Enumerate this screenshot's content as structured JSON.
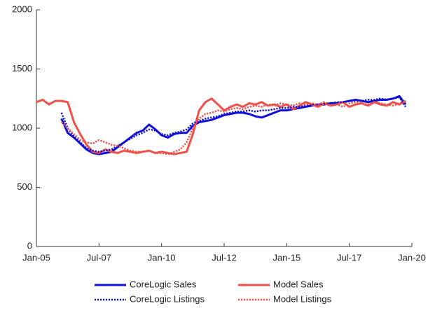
{
  "chart_data": {
    "type": "line",
    "x": [
      "2005-01",
      "2005-04",
      "2005-07",
      "2005-10",
      "2006-01",
      "2006-04",
      "2006-07",
      "2006-10",
      "2007-01",
      "2007-04",
      "2007-07",
      "2007-10",
      "2008-01",
      "2008-04",
      "2008-07",
      "2008-10",
      "2009-01",
      "2009-04",
      "2009-07",
      "2009-10",
      "2010-01",
      "2010-04",
      "2010-07",
      "2010-10",
      "2011-01",
      "2011-04",
      "2011-07",
      "2011-10",
      "2012-01",
      "2012-04",
      "2012-07",
      "2012-10",
      "2013-01",
      "2013-04",
      "2013-07",
      "2013-10",
      "2014-01",
      "2014-04",
      "2014-07",
      "2014-10",
      "2015-01",
      "2015-04",
      "2015-07",
      "2015-10",
      "2016-01",
      "2016-04",
      "2016-07",
      "2016-10",
      "2017-01",
      "2017-04",
      "2017-07",
      "2017-10",
      "2018-01",
      "2018-04",
      "2018-07",
      "2018-10",
      "2019-01",
      "2019-04",
      "2019-07",
      "2019-10"
    ],
    "series": [
      {
        "name": "CoreLogic Sales",
        "color": "#1010d8",
        "style": "solid",
        "values": [
          null,
          null,
          null,
          null,
          1080,
          960,
          920,
          870,
          820,
          790,
          780,
          790,
          800,
          840,
          880,
          920,
          960,
          980,
          1030,
          990,
          940,
          920,
          950,
          960,
          960,
          1020,
          1050,
          1060,
          1070,
          1090,
          1110,
          1120,
          1130,
          1130,
          1120,
          1100,
          1090,
          1110,
          1130,
          1150,
          1150,
          1160,
          1170,
          1180,
          1190,
          1200,
          1200,
          1210,
          1210,
          1220,
          1230,
          1240,
          1230,
          1220,
          1230,
          1240,
          1240,
          1250,
          1270,
          1200
        ]
      },
      {
        "name": "Model Sales",
        "color": "#f0504a",
        "style": "solid",
        "values": [
          1220,
          1240,
          1200,
          1230,
          1230,
          1220,
          1050,
          950,
          860,
          800,
          790,
          820,
          800,
          790,
          810,
          800,
          790,
          800,
          810,
          790,
          800,
          790,
          780,
          790,
          800,
          950,
          1150,
          1220,
          1250,
          1200,
          1150,
          1180,
          1200,
          1180,
          1210,
          1200,
          1220,
          1190,
          1200,
          1180,
          1200,
          1160,
          1190,
          1220,
          1200,
          1180,
          1210,
          1190,
          1200,
          1220,
          1180,
          1200,
          1210,
          1190,
          1220,
          1200,
          1190,
          1220,
          1200,
          1230
        ]
      },
      {
        "name": "CoreLogic Listings",
        "color": "#1010d8",
        "style": "dotted",
        "values": [
          null,
          null,
          null,
          null,
          1130,
          1000,
          930,
          880,
          830,
          810,
          800,
          810,
          820,
          850,
          880,
          910,
          940,
          960,
          990,
          980,
          950,
          940,
          960,
          970,
          990,
          1040,
          1060,
          1080,
          1090,
          1100,
          1120,
          1130,
          1140,
          1140,
          1150,
          1140,
          1150,
          1150,
          1160,
          1170,
          1170,
          1180,
          1180,
          1190,
          1200,
          1200,
          1210,
          1210,
          1220,
          1220,
          1230,
          1230,
          1230,
          1240,
          1240,
          1250,
          1240,
          1250,
          1260,
          1180
        ]
      },
      {
        "name": "Model Listings",
        "color": "#f0504a",
        "style": "dotted",
        "values": [
          null,
          null,
          null,
          null,
          1050,
          1000,
          950,
          900,
          880,
          870,
          900,
          880,
          860,
          850,
          830,
          810,
          800,
          800,
          810,
          790,
          790,
          780,
          800,
          820,
          880,
          1000,
          1080,
          1120,
          1130,
          1150,
          1140,
          1160,
          1170,
          1160,
          1180,
          1190,
          1180,
          1200,
          1190,
          1210,
          1200,
          1190,
          1210,
          1200,
          1210,
          1200,
          1220,
          1190,
          1200,
          1180,
          1210,
          1220,
          1210,
          1200,
          1220,
          1210,
          1200,
          1190,
          1210,
          1230
        ]
      }
    ],
    "xlim": [
      "2005-01",
      "2020-01"
    ],
    "xticks": [
      {
        "value": "2005-01",
        "label": "Jan-05"
      },
      {
        "value": "2007-07",
        "label": "Jul-07"
      },
      {
        "value": "2010-01",
        "label": "Jan-10"
      },
      {
        "value": "2012-07",
        "label": "Jul-12"
      },
      {
        "value": "2015-01",
        "label": "Jan-15"
      },
      {
        "value": "2017-07",
        "label": "Jul-17"
      },
      {
        "value": "2020-01",
        "label": "Jan-20"
      }
    ],
    "ylim": [
      0,
      2000
    ],
    "yticks": [
      0,
      500,
      1000,
      1500,
      2000
    ],
    "grid": false,
    "legend": "bottom"
  }
}
